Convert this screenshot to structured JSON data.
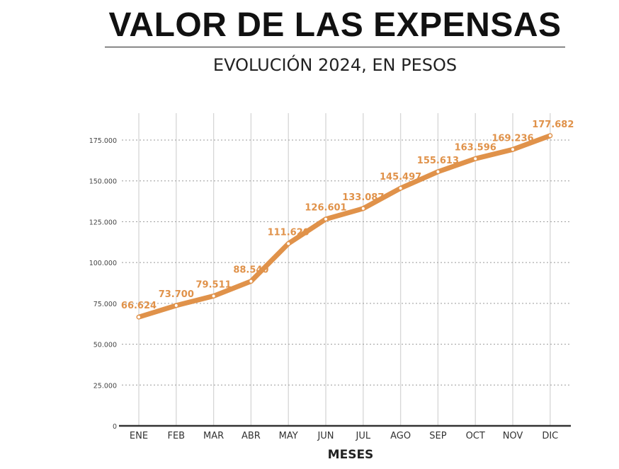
{
  "chart_data": {
    "type": "line",
    "title": "VALOR DE LAS EXPENSAS",
    "subtitle": "EVOLUCIÓN 2024, EN PESOS",
    "xlabel": "MESES",
    "ylabel": "",
    "categories": [
      "ENE",
      "FEB",
      "MAR",
      "ABR",
      "MAY",
      "JUN",
      "JUL",
      "AGO",
      "SEP",
      "OCT",
      "NOV",
      "DIC"
    ],
    "values": [
      66624,
      73700,
      79511,
      88540,
      111620,
      126601,
      133087,
      145497,
      155613,
      163596,
      169236,
      177682
    ],
    "data_labels": [
      "66.624",
      "73.700",
      "79.511",
      "88.540",
      "111.620",
      "126.601",
      "133.087",
      "145.497",
      "155.613",
      "163.596",
      "169.236",
      "177.682"
    ],
    "yticks": [
      0,
      25000,
      50000,
      75000,
      100000,
      125000,
      150000,
      175000
    ],
    "ytick_labels": [
      "0",
      "25.000",
      "50.000",
      "75.000",
      "100.000",
      "125.000",
      "150.000",
      "175.000"
    ],
    "ylim": [
      0,
      175000
    ],
    "grid": true,
    "line_color": "#e0924a"
  }
}
